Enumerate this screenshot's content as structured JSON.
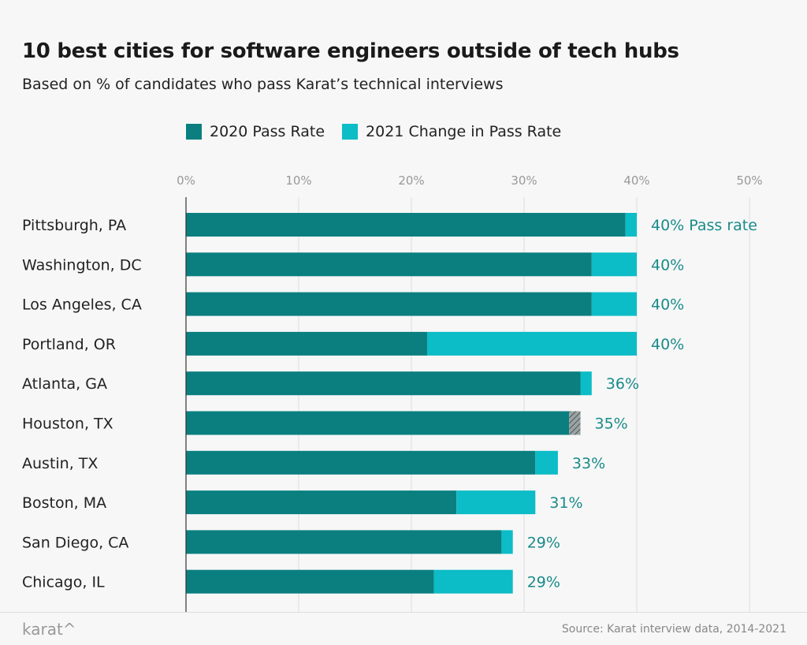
{
  "chart_data": {
    "type": "bar",
    "orientation": "horizontal",
    "stacked": true,
    "title": "10 best cities for software engineers outside of tech hubs",
    "subtitle": "Based on % of candidates who pass Karat’s technical interviews",
    "categories": [
      "Pittsburgh, PA",
      "Washington, DC",
      "Los Angeles, CA",
      "Portland, OR",
      "Atlanta, GA",
      "Houston, TX",
      "Austin, TX",
      "Boston, MA",
      "San Diego, CA",
      "Chicago, IL"
    ],
    "series": [
      {
        "name": "2020 Pass Rate",
        "color": "#0b7f80",
        "values": [
          39,
          36,
          36,
          21.4,
          35,
          34,
          31,
          24,
          28,
          22
        ]
      },
      {
        "name": "2021 Change in Pass Rate",
        "color": "#0cbcc6",
        "values": [
          1,
          4,
          4,
          18.6,
          1,
          1,
          2,
          7,
          1,
          7
        ],
        "hatched": [
          false,
          false,
          false,
          false,
          false,
          true,
          false,
          false,
          false,
          false
        ]
      }
    ],
    "data_labels": [
      "40% Pass rate",
      "40%",
      "40%",
      "40%",
      "36%",
      "35%",
      "33%",
      "31%",
      "29%",
      "29%"
    ],
    "totals": [
      40,
      40,
      40,
      40,
      36,
      35,
      33,
      31,
      29,
      29
    ],
    "x_ticks": [
      "0%",
      "10%",
      "20%",
      "30%",
      "40%",
      "50%"
    ],
    "xlim": [
      0,
      50
    ],
    "grid": true,
    "legend_position": "top",
    "label_color": "#1a8a8a"
  },
  "footer": {
    "logo": "karat^",
    "source": "Source: Karat interview data, 2014-2021"
  }
}
